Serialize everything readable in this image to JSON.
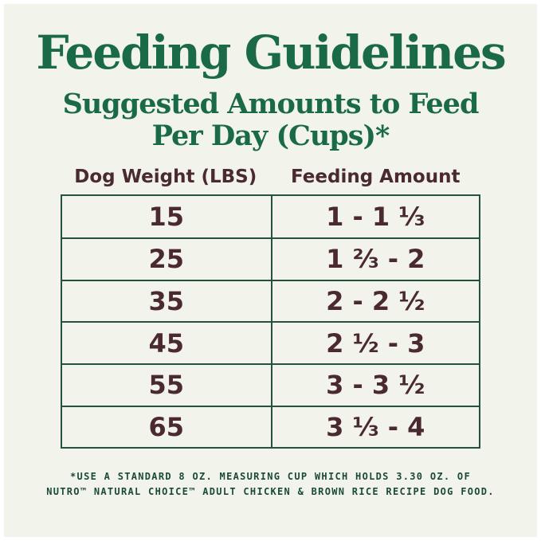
{
  "page": {
    "title": "Feeding Guidelines",
    "subtitle_line1": "Suggested Amounts to Feed",
    "subtitle_line2": "Per Day (Cups)*"
  },
  "table": {
    "columns": [
      "Dog Weight (LBS)",
      "Feeding Amount"
    ],
    "rows": [
      {
        "weight": "15",
        "amount": "1 - 1 ⅓"
      },
      {
        "weight": "25",
        "amount": "1 ⅔ - 2"
      },
      {
        "weight": "35",
        "amount": "2 - 2 ½"
      },
      {
        "weight": "45",
        "amount": "2 ½ - 3"
      },
      {
        "weight": "55",
        "amount": "3 - 3 ½"
      },
      {
        "weight": "65",
        "amount": "3 ⅓ - 4"
      }
    ]
  },
  "footnote": {
    "line1": "*USE A STANDARD 8 OZ. MEASURING CUP WHICH HOLDS 3.30 OZ. OF",
    "line2": "NUTRO™ NATURAL CHOICE™ ADULT CHICKEN & BROWN RICE RECIPE DOG FOOD."
  },
  "colors": {
    "background": "#f2f4ec",
    "title_green": "#1a6b45",
    "table_border_green": "#24523c",
    "text_maroon": "#4a2a2e",
    "footnote_green": "#1b4a36"
  },
  "chart_data": {
    "type": "table",
    "title": "Feeding Guidelines",
    "subtitle": "Suggested Amounts to Feed Per Day (Cups)*",
    "columns": [
      "Dog Weight (LBS)",
      "Feeding Amount"
    ],
    "rows": [
      [
        "15",
        "1 - 1 ⅓"
      ],
      [
        "25",
        "1 ⅔ - 2"
      ],
      [
        "35",
        "2 - 2 ½"
      ],
      [
        "45",
        "2 ½ - 3"
      ],
      [
        "55",
        "3 - 3 ½"
      ],
      [
        "65",
        "3 ⅓ - 4"
      ]
    ],
    "footnote": "*USE A STANDARD 8 OZ. MEASURING CUP WHICH HOLDS 3.30 OZ. OF NUTRO™ NATURAL CHOICE™ ADULT CHICKEN & BROWN RICE RECIPE DOG FOOD."
  }
}
